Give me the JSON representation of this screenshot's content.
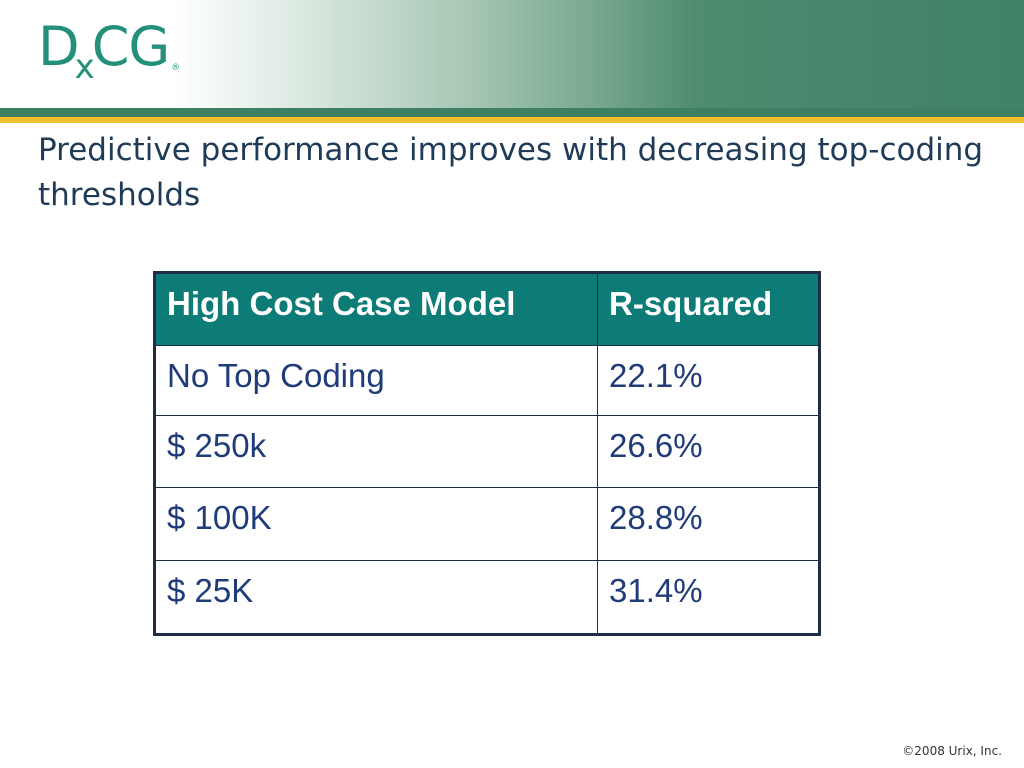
{
  "logo": {
    "part1": "D",
    "part2": "x",
    "part3": "CG",
    "registered": "®"
  },
  "slide": {
    "title": "Predictive performance improves with decreasing top-coding thresholds"
  },
  "table": {
    "headers": [
      "High Cost Case Model",
      "R-squared"
    ],
    "rows": [
      [
        "No Top Coding",
        "22.1%"
      ],
      [
        "$ 250k",
        "26.6%"
      ],
      [
        "$ 100K",
        "28.8%"
      ],
      [
        "$ 25K",
        "31.4%"
      ]
    ]
  },
  "footer": {
    "copyright": "©2008 Urix, Inc."
  },
  "colors": {
    "header_fill": "#0d7b76",
    "band_green": "#3f8266",
    "accent_gold": "#f2c12e",
    "logo_teal": "#24907a",
    "title_text": "#1f3b57",
    "cell_text": "#1f3b78"
  }
}
